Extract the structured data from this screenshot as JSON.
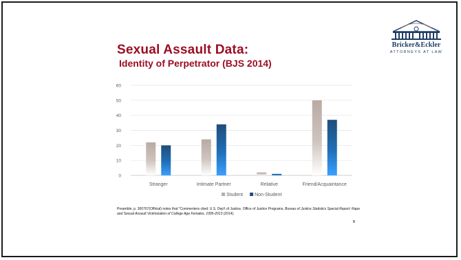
{
  "slide": {
    "title": "Sexual Assault Data:",
    "subtitle": "Identity of Perpetrator (BJS 2014)",
    "page_number": "9",
    "footnote_prefix": "Preamble, p. 300767(Official) notes that \"Commenters cited: U.S. Dep't of Justice, Office of Justice Programs, ",
    "footnote_italic": "Bureau of Justice Statistics Special Report: Rape and Sexual Assault Victimization of College Age Females, 1995-2013",
    "footnote_suffix": " (2014)."
  },
  "logo": {
    "name": "Bricker&Eckler",
    "tagline": "ATTORNEYS AT LAW",
    "colors": {
      "navy": "#1f3b64",
      "gray": "#8c8c8c"
    }
  },
  "colors": {
    "title": "#9b0d24",
    "student": "#b9aaa3",
    "non_student": "#1f4e79",
    "non_student_bottom": "#2f8fe6"
  },
  "chart_data": {
    "type": "bar",
    "categories": [
      "Stranger",
      "Intimate Partner",
      "Relative",
      "Friend/Acquaintance"
    ],
    "series": [
      {
        "name": "Student",
        "values": [
          22,
          24,
          2,
          50
        ]
      },
      {
        "name": "Non-Student",
        "values": [
          20,
          34,
          1,
          37
        ]
      }
    ],
    "ylim": [
      0,
      60
    ],
    "yticks": [
      0,
      10,
      20,
      30,
      40,
      50,
      60
    ],
    "grid": true,
    "legend": "bottom"
  }
}
